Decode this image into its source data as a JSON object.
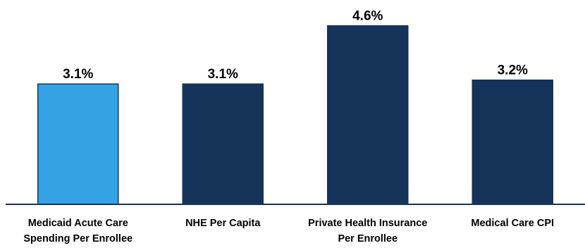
{
  "chart_data": {
    "type": "bar",
    "title": "",
    "xlabel": "",
    "ylabel": "",
    "ylim": [
      0,
      5.0
    ],
    "grid": false,
    "categories": [
      [
        "Medicaid Acute Care",
        "Spending Per Enrollee"
      ],
      [
        "NHE Per Capita"
      ],
      [
        "Private Health Insurance",
        "Per Enrollee"
      ],
      [
        "Medical Care CPI"
      ]
    ],
    "values": [
      3.1,
      3.1,
      4.6,
      3.2
    ],
    "value_labels": [
      "3.1%",
      "3.1%",
      "4.6%",
      "3.2%"
    ],
    "bar_colors": [
      "#33a3e3",
      "#16335a",
      "#16335a",
      "#16335a"
    ],
    "axis_color": "#16335a"
  }
}
